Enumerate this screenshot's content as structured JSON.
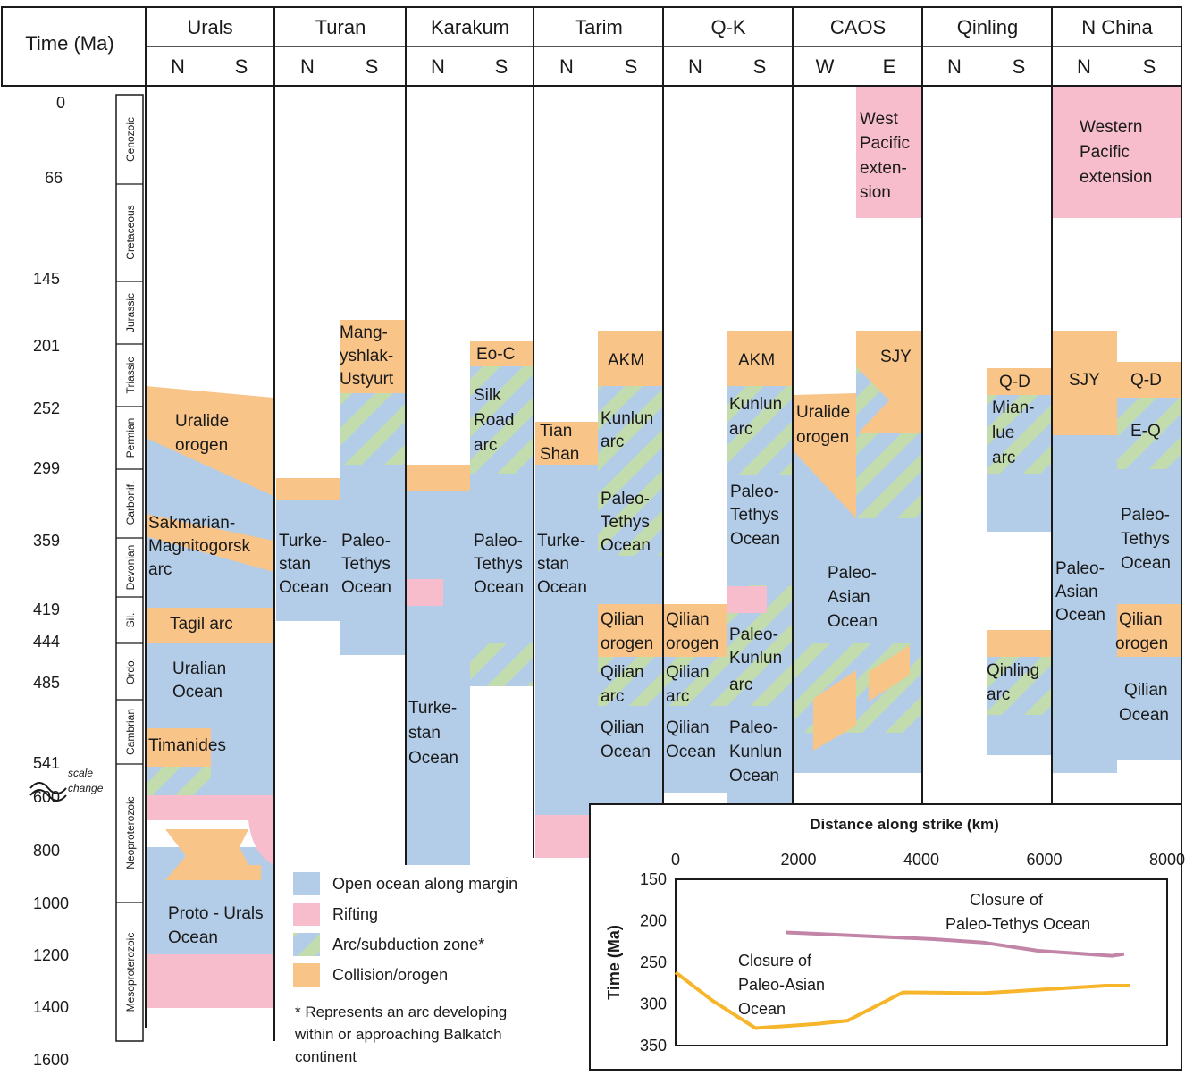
{
  "header": {
    "time_label": "Time (Ma)",
    "regions": [
      {
        "name": "Urals",
        "sides": [
          "N",
          "S"
        ]
      },
      {
        "name": "Turan",
        "sides": [
          "N",
          "S"
        ]
      },
      {
        "name": "Karakum",
        "sides": [
          "N",
          "S"
        ]
      },
      {
        "name": "Tarim",
        "sides": [
          "N",
          "S"
        ]
      },
      {
        "name": "Q-K",
        "sides": [
          "N",
          "S"
        ]
      },
      {
        "name": "CAOS",
        "sides": [
          "W",
          "E"
        ]
      },
      {
        "name": "Qinling",
        "sides": [
          "N",
          "S"
        ]
      },
      {
        "name": "N China",
        "sides": [
          "N",
          "S"
        ]
      }
    ]
  },
  "time_axis": {
    "ticks": [
      "0",
      "66",
      "145",
      "201",
      "252",
      "299",
      "359",
      "419",
      "444",
      "485",
      "541",
      "600",
      "800",
      "1000",
      "1200",
      "1400",
      "1600"
    ],
    "scale_change_note": [
      "scale",
      "change"
    ]
  },
  "periods": [
    "Cenozoic",
    "Cretaceous",
    "Jurassic",
    "Triassic",
    "Permian",
    "Carbonif.",
    "Devonian",
    "Sil.",
    "Ordo.",
    "Cambrian",
    "Neoproterozoic",
    "Mesoproterozoic"
  ],
  "colors": {
    "ocean": "#b3cde8",
    "rifting": "#f7bdcc",
    "arc_stripe": "#c2dcae",
    "collision": "#f9c487",
    "paleo_tethys_line": "#c285a8",
    "paleo_asian_line": "#f6b52a"
  },
  "labels": {
    "uralide_orogen_1": "Uralide",
    "uralide_orogen_2": "orogen",
    "sakmarian_1": "Sakmarian-",
    "sakmarian_2": "Magnitogorsk",
    "sakmarian_3": "arc",
    "tagil": "Tagil arc",
    "uralian_1": "Uralian",
    "uralian_2": "Ocean",
    "timanides": "Timanides",
    "proto_1": "Proto - Urals",
    "proto_2": "Ocean",
    "turan_tk_1": "Turke-",
    "turan_tk_2": "stan",
    "turan_tk_3": "Ocean",
    "turan_pt_1": "Paleo-",
    "turan_pt_2": "Tethys",
    "turan_pt_3": "Ocean",
    "mang_1": "Mang-",
    "mang_2": "yshlak-",
    "mang_3": "Ustyurt",
    "kara_tk_1": "Turke-",
    "kara_tk_2": "stan",
    "kara_tk_3": "Ocean",
    "eoc": "Eo-C",
    "silk_1": "Silk",
    "silk_2": "Road",
    "silk_3": "arc",
    "kara_pt_1": "Paleo-",
    "kara_pt_2": "Tethys",
    "kara_pt_3": "Ocean",
    "tian_1": "Tian",
    "tian_2": "Shan",
    "tarim_tk_1": "Turke-",
    "tarim_tk_2": "stan",
    "tarim_tk_3": "Ocean",
    "akm_tarim": "AKM",
    "kunlun_t_1": "Kunlun",
    "kunlun_t_2": "arc",
    "tarim_pt_1": "Paleo-",
    "tarim_pt_2": "Tethys",
    "tarim_pt_3": "Ocean",
    "qo_t_1": "Qilian",
    "qo_t_2": "orogen",
    "qa_t_1": "Qilian",
    "qa_t_2": "arc",
    "qoc_t_1": "Qilian",
    "qoc_t_2": "Ocean",
    "qo_q_1": "Qilian",
    "qo_q_2": "orogen",
    "qa_q_1": "Qilian",
    "qa_q_2": "arc",
    "qoc_q_1": "Qilian",
    "qoc_q_2": "Ocean",
    "akm_qk": "AKM",
    "kunlun_q_1": "Kunlun",
    "kunlun_q_2": "arc",
    "qk_pt_1": "Paleo-",
    "qk_pt_2": "Tethys",
    "qk_pt_3": "Ocean",
    "pk_a_1": "Paleo-",
    "pk_a_2": "Kunlun",
    "pk_a_3": "arc",
    "pk_o_1": "Paleo-",
    "pk_o_2": "Kunlun",
    "pk_o_3": "Ocean",
    "wp_1": "West",
    "wp_2": "Pacific",
    "wp_3": "exten-",
    "wp_4": "sion",
    "sjy_caos": "SJY",
    "ural_c_1": "Uralide",
    "ural_c_2": "orogen",
    "pa_c_1": "Paleo-",
    "pa_c_2": "Asian",
    "pa_c_3": "Ocean",
    "qd_qin": "Q-D",
    "mian_1": "Mian-",
    "mian_2": "lue",
    "mian_3": "arc",
    "qinling_1": "Qinling",
    "qinling_2": "arc",
    "wpe_1": "Western",
    "wpe_2": "Pacific",
    "wpe_3": "extension",
    "sjy_nc": "SJY",
    "qd_nc": "Q-D",
    "eq": "E-Q",
    "nc_pt_1": "Paleo-",
    "nc_pt_2": "Tethys",
    "nc_pt_3": "Ocean",
    "nc_pa_1": "Paleo-",
    "nc_pa_2": "Asian",
    "nc_pa_3": "Ocean",
    "nc_qo_1": "Qilian",
    "nc_qo_2": "orogen",
    "nc_qoc_1": "Qilian",
    "nc_qoc_2": "Ocean"
  },
  "legend": {
    "items": [
      {
        "key": "ocean",
        "label": "Open ocean along margin"
      },
      {
        "key": "rifting",
        "label": "Rifting"
      },
      {
        "key": "arc",
        "label": "Arc/subduction zone*"
      },
      {
        "key": "collision",
        "label": "Collision/orogen"
      }
    ],
    "note": [
      "* Represents an arc developing",
      "within or approaching Balkatch",
      "continent"
    ]
  },
  "chart_data": {
    "type": "line",
    "title": "Distance along strike (km)",
    "xlabel": "Distance along strike (km)",
    "ylabel": "Time (Ma)",
    "xlim": [
      0,
      8000
    ],
    "ylim": [
      350,
      150
    ],
    "x_ticks": [
      "0",
      "2000",
      "4000",
      "6000",
      "8000"
    ],
    "y_ticks": [
      "150",
      "200",
      "250",
      "300",
      "350"
    ],
    "grid": false,
    "series": [
      {
        "name": "Closure of Paleo-Tethys Ocean",
        "label_lines": [
          "Closure of",
          "Paleo-Tethys Ocean"
        ],
        "color": "#c285a8",
        "x": [
          1800,
          3000,
          4200,
          5000,
          5900,
          7100,
          7300
        ],
        "y": [
          214,
          218,
          222,
          226,
          236,
          242,
          240
        ]
      },
      {
        "name": "Closure of Paleo-Asian Ocean",
        "label_lines": [
          "Closure of",
          "Paleo-Asian",
          "Ocean"
        ],
        "color": "#f6b52a",
        "x": [
          0,
          600,
          1300,
          2300,
          2800,
          3700,
          5000,
          7000,
          7400
        ],
        "y": [
          262,
          296,
          329,
          324,
          320,
          286,
          287,
          278,
          278
        ]
      }
    ]
  }
}
